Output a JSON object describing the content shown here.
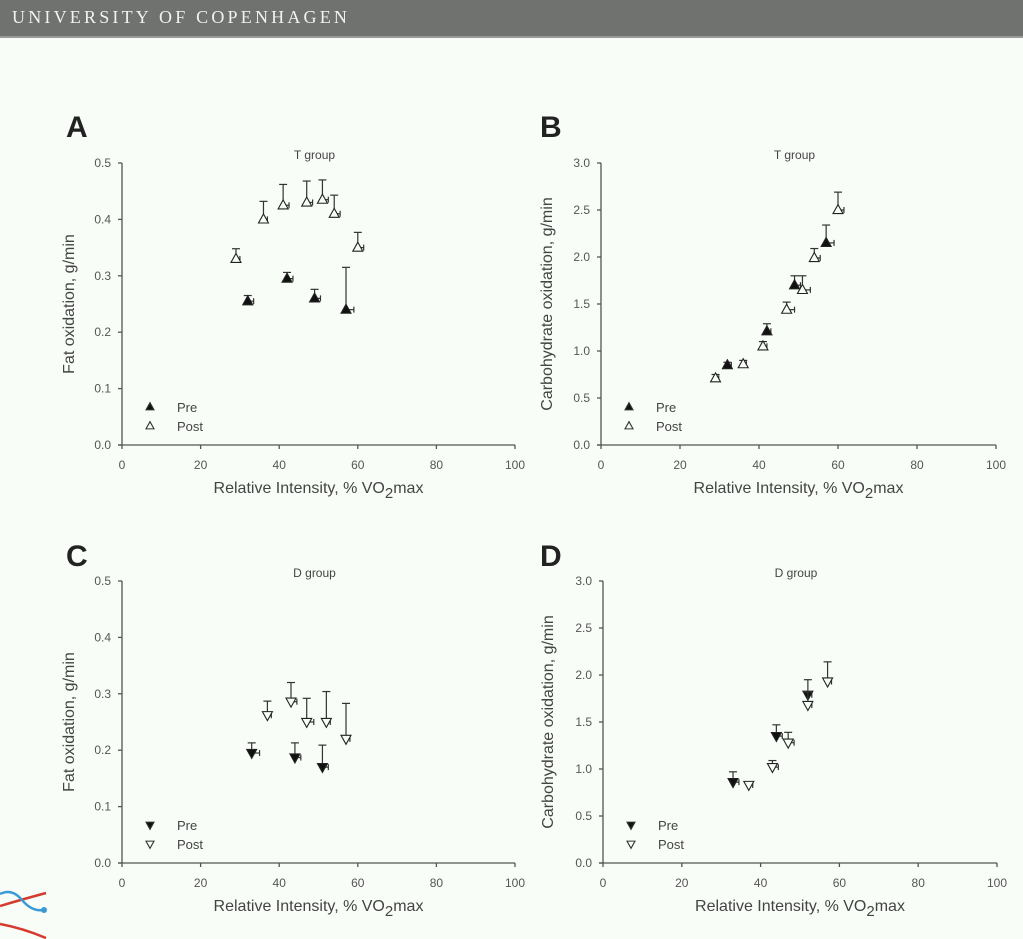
{
  "header": {
    "title": "UNIVERSITY OF COPENHAGEN"
  },
  "colors": {
    "header_bg": "#707270",
    "background": "#f8fdf7",
    "marker": "#111111"
  },
  "chart_data": [
    {
      "id": "A",
      "type": "scatter",
      "panel_label": "A",
      "title": "T group",
      "xlabel": "Relative Intensity, % VO",
      "xlabel_sub": "2",
      "xlabel_suffix": "max",
      "ylabel": "Fat oxidation, g/min",
      "xlim": [
        0,
        100
      ],
      "ylim": [
        0,
        0.5
      ],
      "xticks": [
        "0",
        "20",
        "40",
        "60",
        "80",
        "100"
      ],
      "yticks": [
        "0.0",
        "0.1",
        "0.2",
        "0.3",
        "0.4",
        "0.5"
      ],
      "marker_direction": "up",
      "legend": [
        "Pre",
        "Post"
      ],
      "legend_position": "bottom-left",
      "series": [
        {
          "name": "Pre",
          "filled": true,
          "x": [
            32,
            42,
            49,
            57
          ],
          "y": [
            0.255,
            0.295,
            0.26,
            0.24
          ],
          "y_err_upper": [
            0.265,
            0.306,
            0.276,
            0.315
          ],
          "x_err": [
            1.5,
            1.5,
            1.5,
            2.0
          ]
        },
        {
          "name": "Post",
          "filled": false,
          "x": [
            29,
            36,
            41,
            47,
            51,
            54,
            60
          ],
          "y": [
            0.33,
            0.4,
            0.425,
            0.43,
            0.435,
            0.41,
            0.35
          ],
          "y_err_upper": [
            0.348,
            0.432,
            0.462,
            0.468,
            0.47,
            0.443,
            0.377
          ],
          "x_err": [
            1,
            1,
            1.5,
            1.5,
            1.5,
            1.5,
            1.5
          ]
        }
      ]
    },
    {
      "id": "B",
      "type": "scatter",
      "panel_label": "B",
      "title": "T group",
      "xlabel": "Relative Intensity, % VO",
      "xlabel_sub": "2",
      "xlabel_suffix": "max",
      "ylabel": "Carbohydrate oxidation, g/min",
      "xlim": [
        0,
        100
      ],
      "ylim": [
        0,
        3.0
      ],
      "xticks": [
        "0",
        "20",
        "40",
        "60",
        "80",
        "100"
      ],
      "yticks": [
        "0.0",
        "0.5",
        "1.0",
        "1.5",
        "2.0",
        "2.5",
        "3.0"
      ],
      "marker_direction": "up",
      "legend": [
        "Pre",
        "Post"
      ],
      "legend_position": "bottom-left",
      "series": [
        {
          "name": "Pre",
          "filled": true,
          "x": [
            32,
            42,
            49,
            57
          ],
          "y": [
            0.85,
            1.21,
            1.7,
            2.15
          ],
          "y_err_upper": [
            0.88,
            1.29,
            1.8,
            2.34
          ],
          "x_err": [
            1,
            1,
            1.5,
            2
          ]
        },
        {
          "name": "Post",
          "filled": false,
          "x": [
            29,
            36,
            41,
            47,
            51,
            54,
            60
          ],
          "y": [
            0.71,
            0.86,
            1.05,
            1.44,
            1.65,
            1.99,
            2.5
          ],
          "y_err_upper": [
            0.75,
            0.9,
            1.1,
            1.52,
            1.8,
            2.09,
            2.69
          ],
          "x_err": [
            0.8,
            0.8,
            1,
            2,
            2,
            1.5,
            1.5
          ]
        }
      ]
    },
    {
      "id": "C",
      "type": "scatter",
      "panel_label": "C",
      "title": "D group",
      "xlabel": "Relative Intensity, % VO",
      "xlabel_sub": "2",
      "xlabel_suffix": "max",
      "ylabel": "Fat oxidation, g/min",
      "xlim": [
        0,
        100
      ],
      "ylim": [
        0,
        0.5
      ],
      "xticks": [
        "0",
        "20",
        "40",
        "60",
        "80",
        "100"
      ],
      "yticks": [
        "0.0",
        "0.1",
        "0.2",
        "0.3",
        "0.4",
        "0.5"
      ],
      "marker_direction": "down",
      "legend": [
        "Pre",
        "Post"
      ],
      "legend_position": "bottom-left",
      "series": [
        {
          "name": "Pre",
          "filled": true,
          "x": [
            33,
            44,
            51
          ],
          "y": [
            0.195,
            0.187,
            0.17
          ],
          "y_err_upper": [
            0.213,
            0.213,
            0.209
          ],
          "x_err": [
            2,
            1.5,
            1.5
          ]
        },
        {
          "name": "Post",
          "filled": false,
          "x": [
            37,
            43,
            47,
            52,
            57
          ],
          "y": [
            0.262,
            0.286,
            0.25,
            0.25,
            0.22
          ],
          "y_err_upper": [
            0.287,
            0.32,
            0.292,
            0.304,
            0.283
          ],
          "x_err": [
            1,
            1.5,
            1.8,
            1,
            1
          ]
        }
      ]
    },
    {
      "id": "D",
      "type": "scatter",
      "panel_label": "D",
      "title": "D group",
      "xlabel": "Relative Intensity, % VO",
      "xlabel_sub": "2",
      "xlabel_suffix": "max",
      "ylabel": "Carbohydrate oxidation, g/min",
      "xlim": [
        0,
        100
      ],
      "ylim": [
        0,
        3.0
      ],
      "xticks": [
        "0",
        "20",
        "40",
        "60",
        "80",
        "100"
      ],
      "yticks": [
        "0.0",
        "0.5",
        "1.0",
        "1.5",
        "2.0",
        "2.5",
        "3.0"
      ],
      "marker_direction": "down",
      "legend": [
        "Pre",
        "Post"
      ],
      "legend_position": "bottom-left",
      "series": [
        {
          "name": "Pre",
          "filled": true,
          "x": [
            33,
            44,
            52
          ],
          "y": [
            0.86,
            1.35,
            1.79
          ],
          "y_err_upper": [
            0.97,
            1.47,
            1.95
          ],
          "x_err": [
            1.5,
            1.5,
            1
          ]
        },
        {
          "name": "Post",
          "filled": false,
          "x": [
            37,
            43,
            47,
            52,
            57
          ],
          "y": [
            0.83,
            1.02,
            1.28,
            1.68,
            1.93
          ],
          "y_err_upper": [
            0.86,
            1.09,
            1.39,
            1.82,
            2.14
          ],
          "x_err": [
            1,
            1.5,
            1.5,
            1,
            1
          ]
        }
      ]
    }
  ]
}
